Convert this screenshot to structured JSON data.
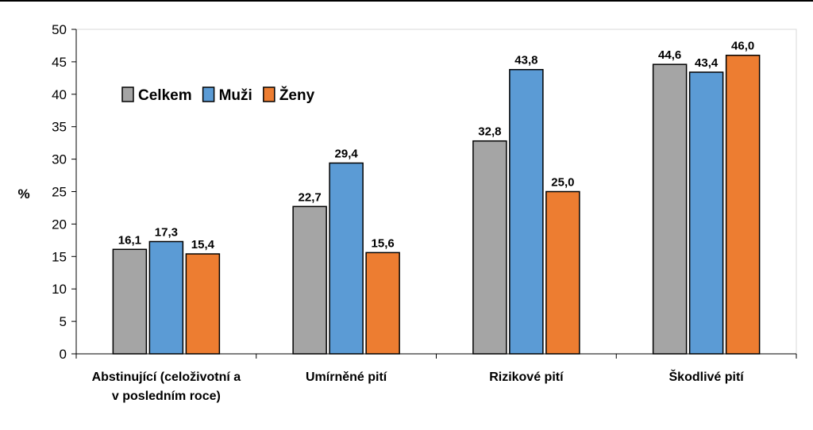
{
  "chart_data": {
    "type": "bar",
    "categories": [
      [
        "Abstinující (celoživotní a",
        "v posledním roce)"
      ],
      [
        "Umírněné pití"
      ],
      [
        "Rizikové pití"
      ],
      [
        "Škodlivé pití"
      ]
    ],
    "series": [
      {
        "name": "Celkem",
        "color": "#a5a5a5",
        "values": [
          16.1,
          22.7,
          32.8,
          44.6
        ],
        "labels": [
          "16,1",
          "22,7",
          "32,8",
          "44,6"
        ]
      },
      {
        "name": "Muži",
        "color": "#5b9bd5",
        "values": [
          17.3,
          29.4,
          43.8,
          43.4
        ],
        "labels": [
          "17,3",
          "29,4",
          "43,8",
          "43,4"
        ]
      },
      {
        "name": "Ženy",
        "color": "#ed7d31",
        "values": [
          15.4,
          15.6,
          25.0,
          46.0
        ],
        "labels": [
          "15,4",
          "15,6",
          "25,0",
          "46,0"
        ]
      }
    ],
    "ylabel": "%",
    "ylim": [
      0,
      50
    ],
    "yticks": [
      0,
      5,
      10,
      15,
      20,
      25,
      30,
      35,
      40,
      45,
      50
    ],
    "legend_position": "top-left",
    "grid": false
  }
}
